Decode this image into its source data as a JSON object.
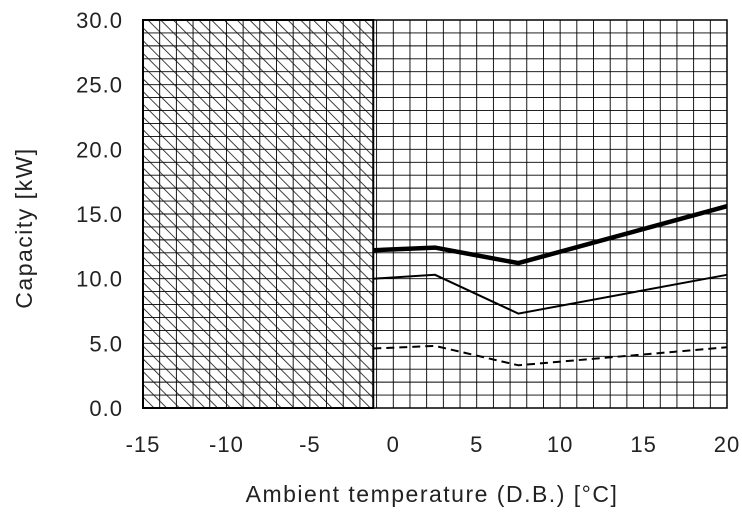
{
  "chart_data": {
    "type": "line",
    "title": "",
    "xlabel": "Ambient temperature (D.B.) [°C]",
    "ylabel": "Capacity [kW]",
    "xlim": [
      -15,
      20
    ],
    "ylim": [
      0,
      30
    ],
    "x_ticks": [
      "-15",
      "-10",
      "-5",
      "0",
      "5",
      "10",
      "15",
      "20"
    ],
    "y_ticks": [
      "0.0",
      "5.0",
      "10.0",
      "15.0",
      "20.0",
      "25.0",
      "30.0"
    ],
    "grid": true,
    "legend": "none",
    "hatched_region": {
      "x_from": -15,
      "x_to": -1.2
    },
    "series": [
      {
        "style": "thick-solid",
        "x": [
          -1.2,
          2.5,
          7.5,
          20
        ],
        "y": [
          12.2,
          12.4,
          11.2,
          15.6
        ]
      },
      {
        "style": "thin-solid",
        "x": [
          -1.2,
          2.5,
          7.5,
          20
        ],
        "y": [
          10.0,
          10.3,
          7.3,
          10.3
        ]
      },
      {
        "style": "dashed",
        "x": [
          -1.2,
          2.5,
          7.5,
          20
        ],
        "y": [
          4.6,
          4.8,
          3.3,
          4.7
        ]
      }
    ]
  }
}
